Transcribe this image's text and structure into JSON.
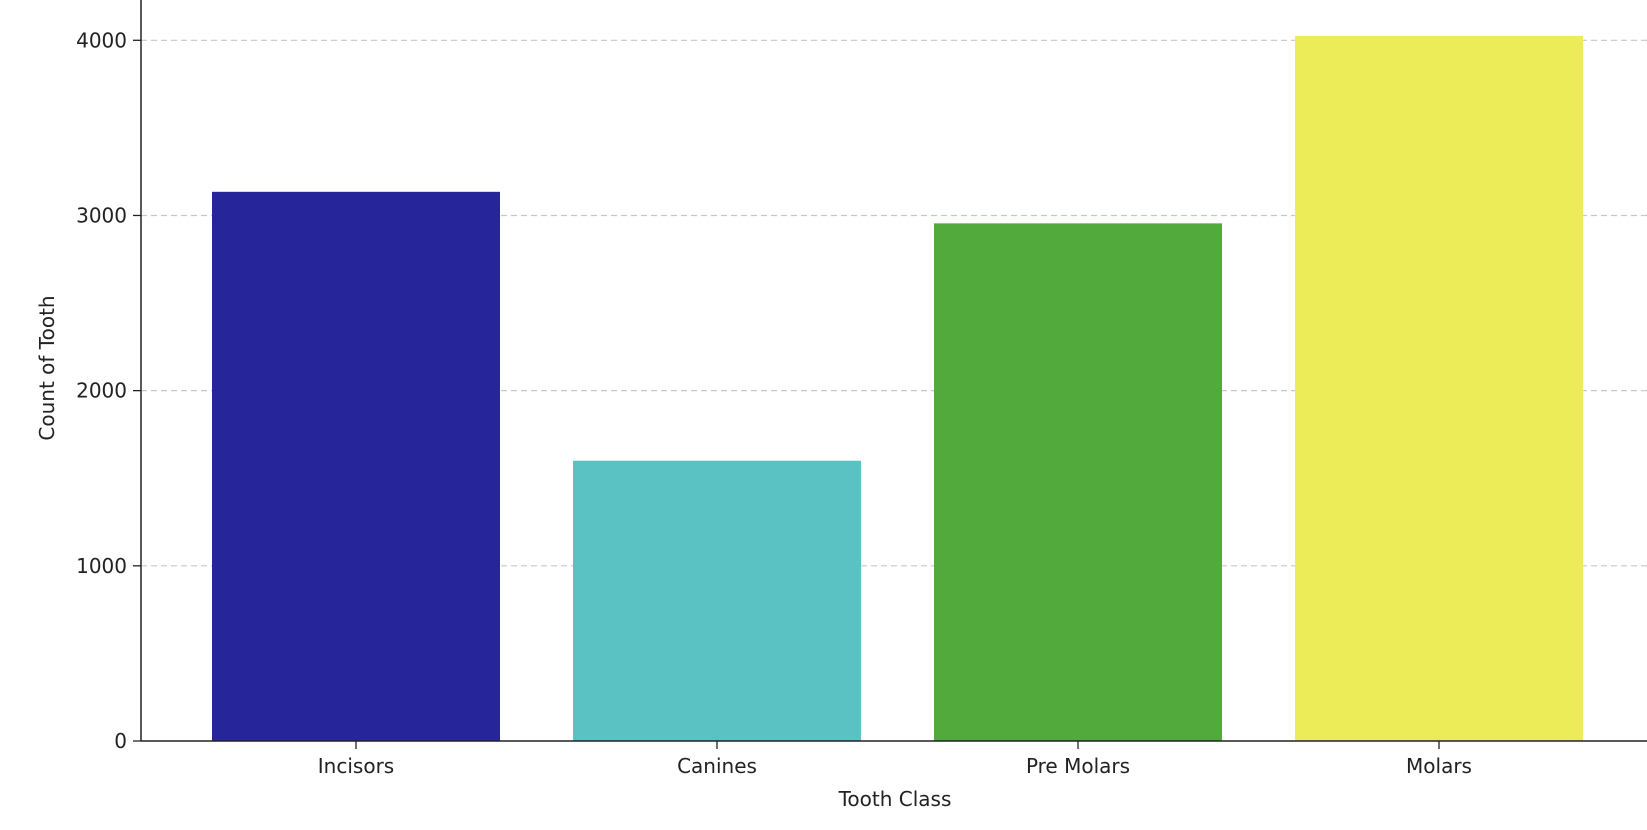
{
  "chart_data": {
    "type": "bar",
    "title": "",
    "xlabel": "Tooth Class",
    "ylabel": "Count of Tooth",
    "categories": [
      "Incisors",
      "Canines",
      "Pre Molars",
      "Molars"
    ],
    "values": [
      3135,
      1600,
      2955,
      4025
    ],
    "colors": [
      "#27259a",
      "#5bc2c4",
      "#53aa3c",
      "#ebec58"
    ],
    "ylim": [
      0,
      4230
    ],
    "yticks": [
      0,
      1000,
      2000,
      3000,
      4000
    ],
    "grid": "y, dashed",
    "legend": "none"
  }
}
